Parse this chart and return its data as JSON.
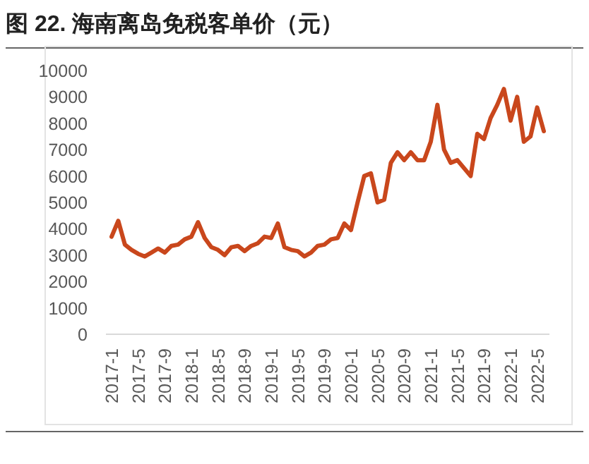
{
  "chart_data": {
    "type": "line",
    "title": "图 22. 海南离岛免税客单价（元）",
    "categories": [
      "2017-1",
      null,
      null,
      null,
      "2017-5",
      null,
      null,
      null,
      "2017-9",
      null,
      null,
      null,
      "2018-1",
      null,
      null,
      null,
      "2018-5",
      null,
      null,
      null,
      "2018-9",
      null,
      null,
      null,
      "2019-1",
      null,
      null,
      null,
      "2019-5",
      null,
      null,
      null,
      "2019-9",
      null,
      null,
      null,
      "2020-1",
      null,
      null,
      null,
      "2020-5",
      null,
      null,
      null,
      "2020-9",
      null,
      null,
      null,
      "2021-1",
      null,
      null,
      null,
      "2021-5",
      null,
      null,
      null,
      "2021-9",
      null,
      null,
      null,
      "2022-1",
      null,
      null,
      null,
      "2022-5",
      null
    ],
    "series": [
      {
        "color": "#c9471c",
        "values": [
          3700,
          4300,
          3400,
          3200,
          3050,
          2950,
          3100,
          3250,
          3100,
          3350,
          3400,
          3600,
          3700,
          4250,
          3650,
          3300,
          3200,
          3000,
          3300,
          3350,
          3150,
          3350,
          3450,
          3700,
          3650,
          4200,
          3300,
          3200,
          3150,
          2950,
          3100,
          3350,
          3400,
          3600,
          3650,
          4200,
          3950,
          5000,
          6000,
          6100,
          5000,
          5100,
          6500,
          6900,
          6600,
          6900,
          6600,
          6600,
          7300,
          8700,
          7000,
          6500,
          6600,
          6300,
          6000,
          7600,
          7400,
          8200,
          8700,
          9300,
          8100,
          9000,
          7300,
          7500,
          8600,
          7700
        ]
      }
    ],
    "ylim": [
      0,
      10000
    ],
    "yticks": [
      0,
      1000,
      2000,
      3000,
      4000,
      5000,
      6000,
      7000,
      8000,
      9000,
      10000
    ],
    "grid": false
  }
}
